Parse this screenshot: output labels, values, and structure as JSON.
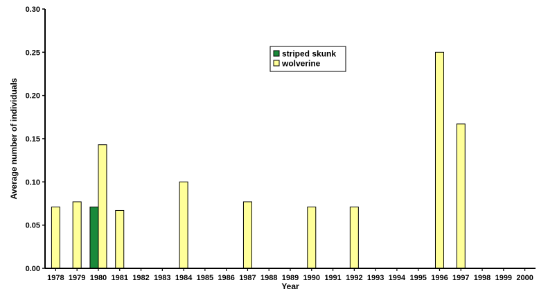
{
  "chart_data": {
    "type": "bar",
    "title": "",
    "xlabel": "Year",
    "ylabel": "Average number of individuals",
    "ylim": [
      0,
      0.3
    ],
    "yticks": [
      "0.00",
      "0.05",
      "0.10",
      "0.15",
      "0.20",
      "0.25",
      "0.30"
    ],
    "categories": [
      "1978",
      "1979",
      "1980",
      "1981",
      "1982",
      "1983",
      "1984",
      "1985",
      "1986",
      "1987",
      "1988",
      "1989",
      "1990",
      "1991",
      "1992",
      "1993",
      "1994",
      "1995",
      "1996",
      "1997",
      "1998",
      "1999",
      "2000"
    ],
    "series": [
      {
        "name": "striped skunk",
        "color": "#1a8a3a",
        "values": [
          0,
          0,
          0.071,
          0,
          0,
          0,
          0,
          0,
          0,
          0,
          0,
          0,
          0,
          0,
          0,
          0,
          0,
          0,
          0,
          0,
          0,
          0,
          0
        ]
      },
      {
        "name": "wolverine",
        "color": "#ffff99",
        "values": [
          0.071,
          0.077,
          0.143,
          0.067,
          0,
          0,
          0.1,
          0,
          0,
          0.077,
          0,
          0,
          0.071,
          0,
          0.071,
          0,
          0,
          0,
          0.25,
          0.167,
          0,
          0,
          0
        ]
      }
    ],
    "legend": "top-center",
    "grid": false
  }
}
